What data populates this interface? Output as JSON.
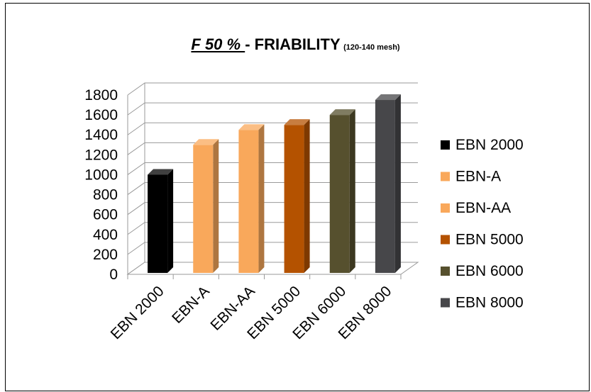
{
  "chart_data": {
    "type": "bar",
    "title_part1": "F 50 % ",
    "title_part2": "- FRIABILITY",
    "title_part3": "(120-140 mesh)",
    "categories": [
      "EBN 2000",
      "EBN-A",
      "EBN-AA",
      "EBN 5000",
      "EBN 6000",
      "EBN 8000"
    ],
    "values": [
      1000,
      1300,
      1450,
      1500,
      1600,
      1750
    ],
    "series_colors": [
      "#000000",
      "#F9A85B",
      "#F9A85B",
      "#B45200",
      "#56502E",
      "#47474A"
    ],
    "ylim": [
      0,
      1800
    ],
    "yticks": [
      0,
      200,
      400,
      600,
      800,
      1000,
      1200,
      1400,
      1600,
      1800
    ],
    "legend": [
      {
        "label": "EBN 2000",
        "color": "#000000"
      },
      {
        "label": "EBN-A",
        "color": "#F9A85B"
      },
      {
        "label": "EBN-AA",
        "color": "#F9A85B"
      },
      {
        "label": "EBN 5000",
        "color": "#B45200"
      },
      {
        "label": "EBN 6000",
        "color": "#56502E"
      },
      {
        "label": "EBN 8000",
        "color": "#47474A"
      }
    ],
    "legend_position": "right",
    "grid": true
  }
}
